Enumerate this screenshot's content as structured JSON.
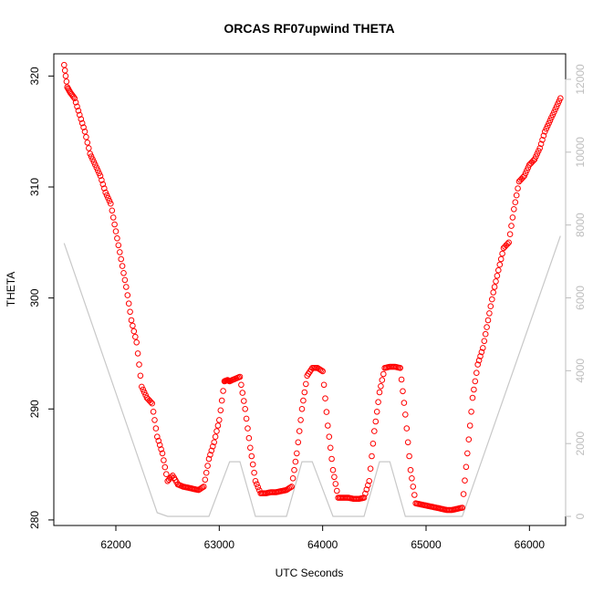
{
  "chart_data": {
    "type": "scatter",
    "title": "ORCAS RF07upwind THETA",
    "xlabel": "UTC Seconds",
    "ylabel": "THETA",
    "xlim": [
      61400,
      66350
    ],
    "ylim": [
      279.5,
      322.0
    ],
    "y2lim": [
      -250,
      12700
    ],
    "x_ticks": [
      "62000",
      "63000",
      "64000",
      "65000",
      "66000"
    ],
    "y_ticks": [
      "280",
      "290",
      "300",
      "310",
      "320"
    ],
    "y2_ticks": [
      "0",
      "2000",
      "4000",
      "6000",
      "8000",
      "10000",
      "12000"
    ],
    "colors": {
      "points": "#ff0000",
      "secondary_line": "#c8c8c8",
      "axis": "#000000",
      "right_axis": "#bdbdbd"
    },
    "series": [
      {
        "kind": "points",
        "x_values": [
          61500,
          61530,
          61560,
          61600,
          61650,
          61700,
          61750,
          61800,
          61850,
          61900,
          61950,
          62000,
          62050,
          62100,
          62150,
          62200,
          62250,
          62300,
          62350,
          62400,
          62450,
          62500,
          62550,
          62600,
          62650,
          62700,
          62750,
          62800,
          62850,
          62900,
          62950,
          63000,
          63050,
          63080,
          63100,
          63150,
          63200,
          63250,
          63300,
          63350,
          63400,
          63450,
          63500,
          63550,
          63600,
          63650,
          63700,
          63750,
          63800,
          63850,
          63900,
          63950,
          64000,
          64050,
          64100,
          64150,
          64200,
          64250,
          64300,
          64350,
          64400,
          64450,
          64500,
          64550,
          64600,
          64650,
          64700,
          64750,
          64800,
          64850,
          64900,
          64950,
          65000,
          65050,
          65100,
          65150,
          65200,
          65250,
          65300,
          65350,
          65400,
          65450,
          65500,
          65550,
          65600,
          65650,
          65700,
          65750,
          65800,
          65850,
          65900,
          65950,
          66000,
          66050,
          66100,
          66150,
          66200,
          66250,
          66300
        ],
        "y_values": [
          321.0,
          319.0,
          318.5,
          318.0,
          316.5,
          315.0,
          313.0,
          312.0,
          311.0,
          309.5,
          308.5,
          306.0,
          303.5,
          301.0,
          298.0,
          296.0,
          292.0,
          291.0,
          290.5,
          287.5,
          286.0,
          283.5,
          284.0,
          283.2,
          283.0,
          282.9,
          282.8,
          282.7,
          283.0,
          285.5,
          287.0,
          289.0,
          292.5,
          292.6,
          292.5,
          292.7,
          292.9,
          290.0,
          286.5,
          283.5,
          282.4,
          282.4,
          282.5,
          282.5,
          282.6,
          282.7,
          283.0,
          286.0,
          290.0,
          293.0,
          293.7,
          293.7,
          293.4,
          288.5,
          284.5,
          282.0,
          282.0,
          282.0,
          281.9,
          281.9,
          282.0,
          283.5,
          288.0,
          291.5,
          293.7,
          293.8,
          293.8,
          293.7,
          289.5,
          284.5,
          281.5,
          281.4,
          281.3,
          281.2,
          281.1,
          281.0,
          280.9,
          280.9,
          281.0,
          281.1,
          286.0,
          291.0,
          294.0,
          295.5,
          298.0,
          300.5,
          302.5,
          304.5,
          305.0,
          308.0,
          310.5,
          311.0,
          312.0,
          312.5,
          313.5,
          315.0,
          316.0,
          317.0,
          318.0
        ]
      },
      {
        "kind": "line",
        "axis": "right",
        "x_values": [
          61500,
          62400,
          62500,
          62900,
          63100,
          63200,
          63350,
          63650,
          63800,
          63900,
          64100,
          64400,
          64550,
          64650,
          64800,
          65350,
          66300
        ],
        "y_values": [
          7500,
          100,
          0,
          0,
          1500,
          1500,
          0,
          0,
          1500,
          1500,
          0,
          0,
          1500,
          1500,
          0,
          0,
          7700
        ]
      }
    ]
  }
}
